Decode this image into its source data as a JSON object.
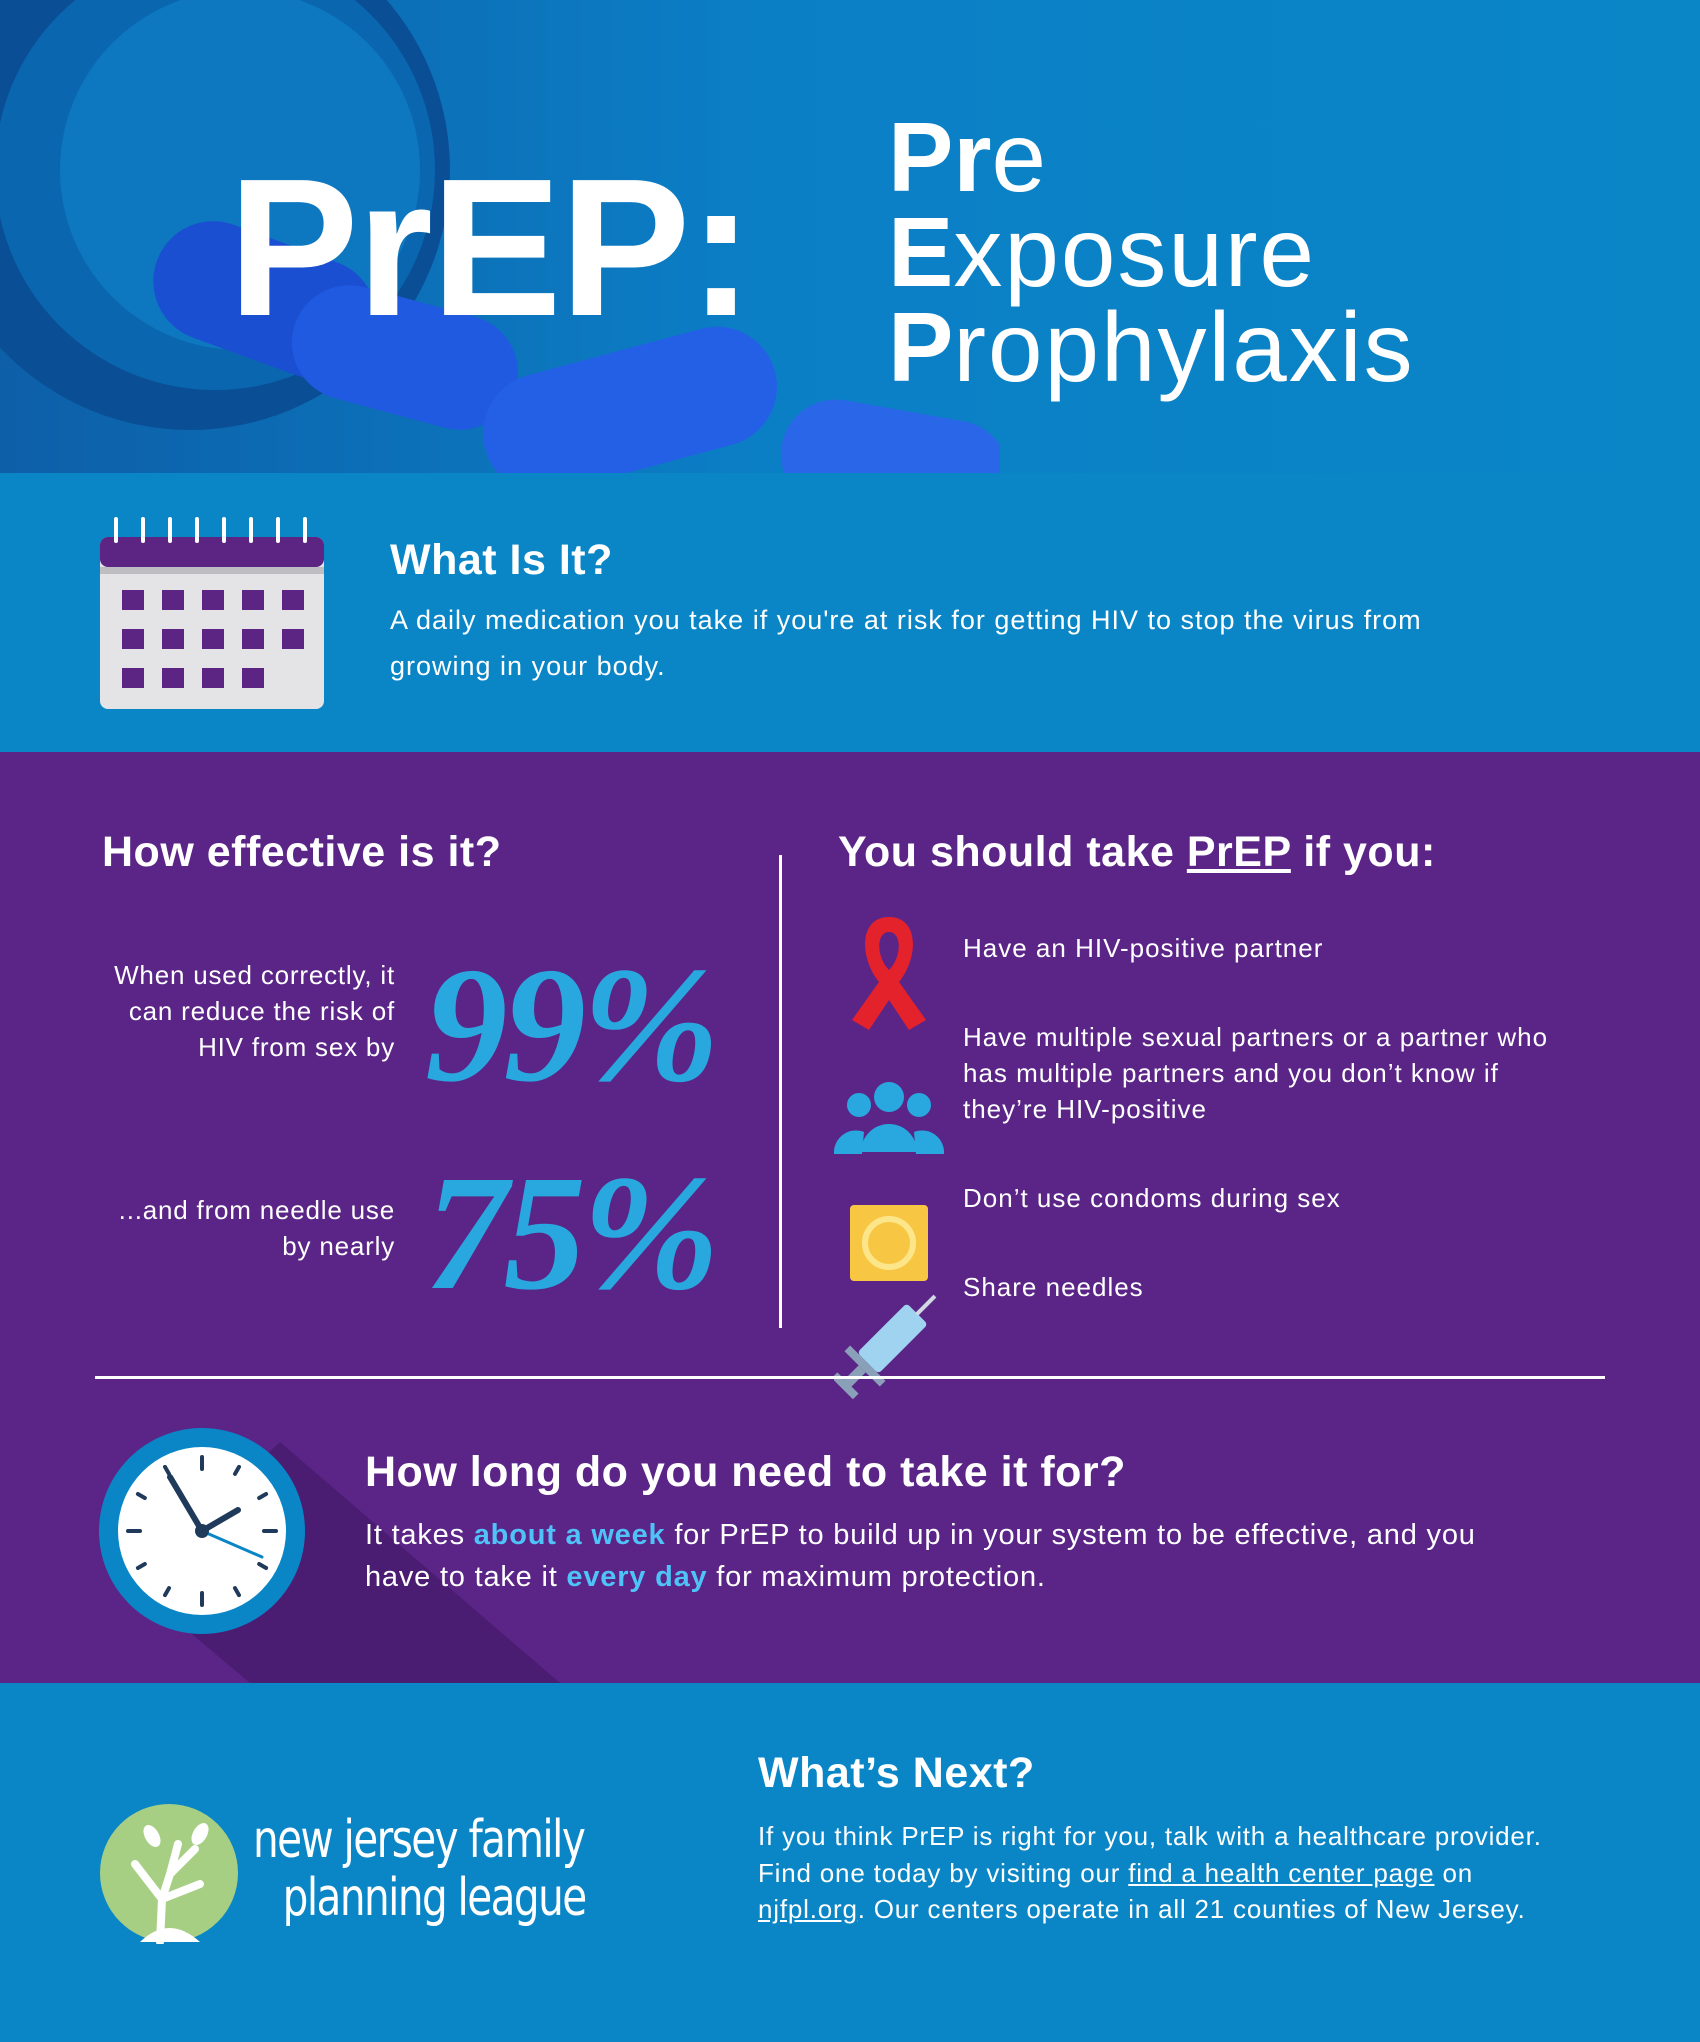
{
  "header": {
    "title": "PrEP:",
    "acronym": [
      {
        "lead": "Pr",
        "rest": "e"
      },
      {
        "lead": "E",
        "rest": "xposure"
      },
      {
        "lead": "P",
        "rest": "rophylaxis"
      }
    ]
  },
  "what_is_it": {
    "heading": "What Is It?",
    "text": "A daily medication you take if you're at risk for getting HIV to stop the virus from growing in your body."
  },
  "effectiveness": {
    "heading": "How effective is it?",
    "stats": [
      {
        "label": "When used correctly, it can reduce the risk of HIV from sex by",
        "value": "99%"
      },
      {
        "label": "...and from needle use by nearly",
        "value": "75%"
      }
    ]
  },
  "criteria": {
    "heading": [
      "You should take ",
      "PrEP",
      " if you:"
    ],
    "items": [
      "Have an HIV-positive partner",
      "Have multiple sexual partners or a partner who has multiple partners and you don’t know if they’re HIV-positive",
      "Don’t use condoms during sex",
      "Share needles"
    ]
  },
  "duration": {
    "heading": "How long do you need to take it for?",
    "text": [
      "It takes ",
      "about a week",
      " for PrEP to build up in your system to be effective, and you have to take it ",
      "every day",
      " for maximum protection."
    ]
  },
  "whats_next": {
    "heading": "What’s Next?",
    "text": [
      "If you think PrEP is right for you, talk with a healthcare provider. Find one today by visiting our ",
      "find a health center page",
      " on ",
      "njfpl.org",
      ". Our centers operate in all 21 counties of New Jersey."
    ]
  },
  "logo": {
    "lines": [
      "new jersey family",
      "planning league"
    ]
  }
}
